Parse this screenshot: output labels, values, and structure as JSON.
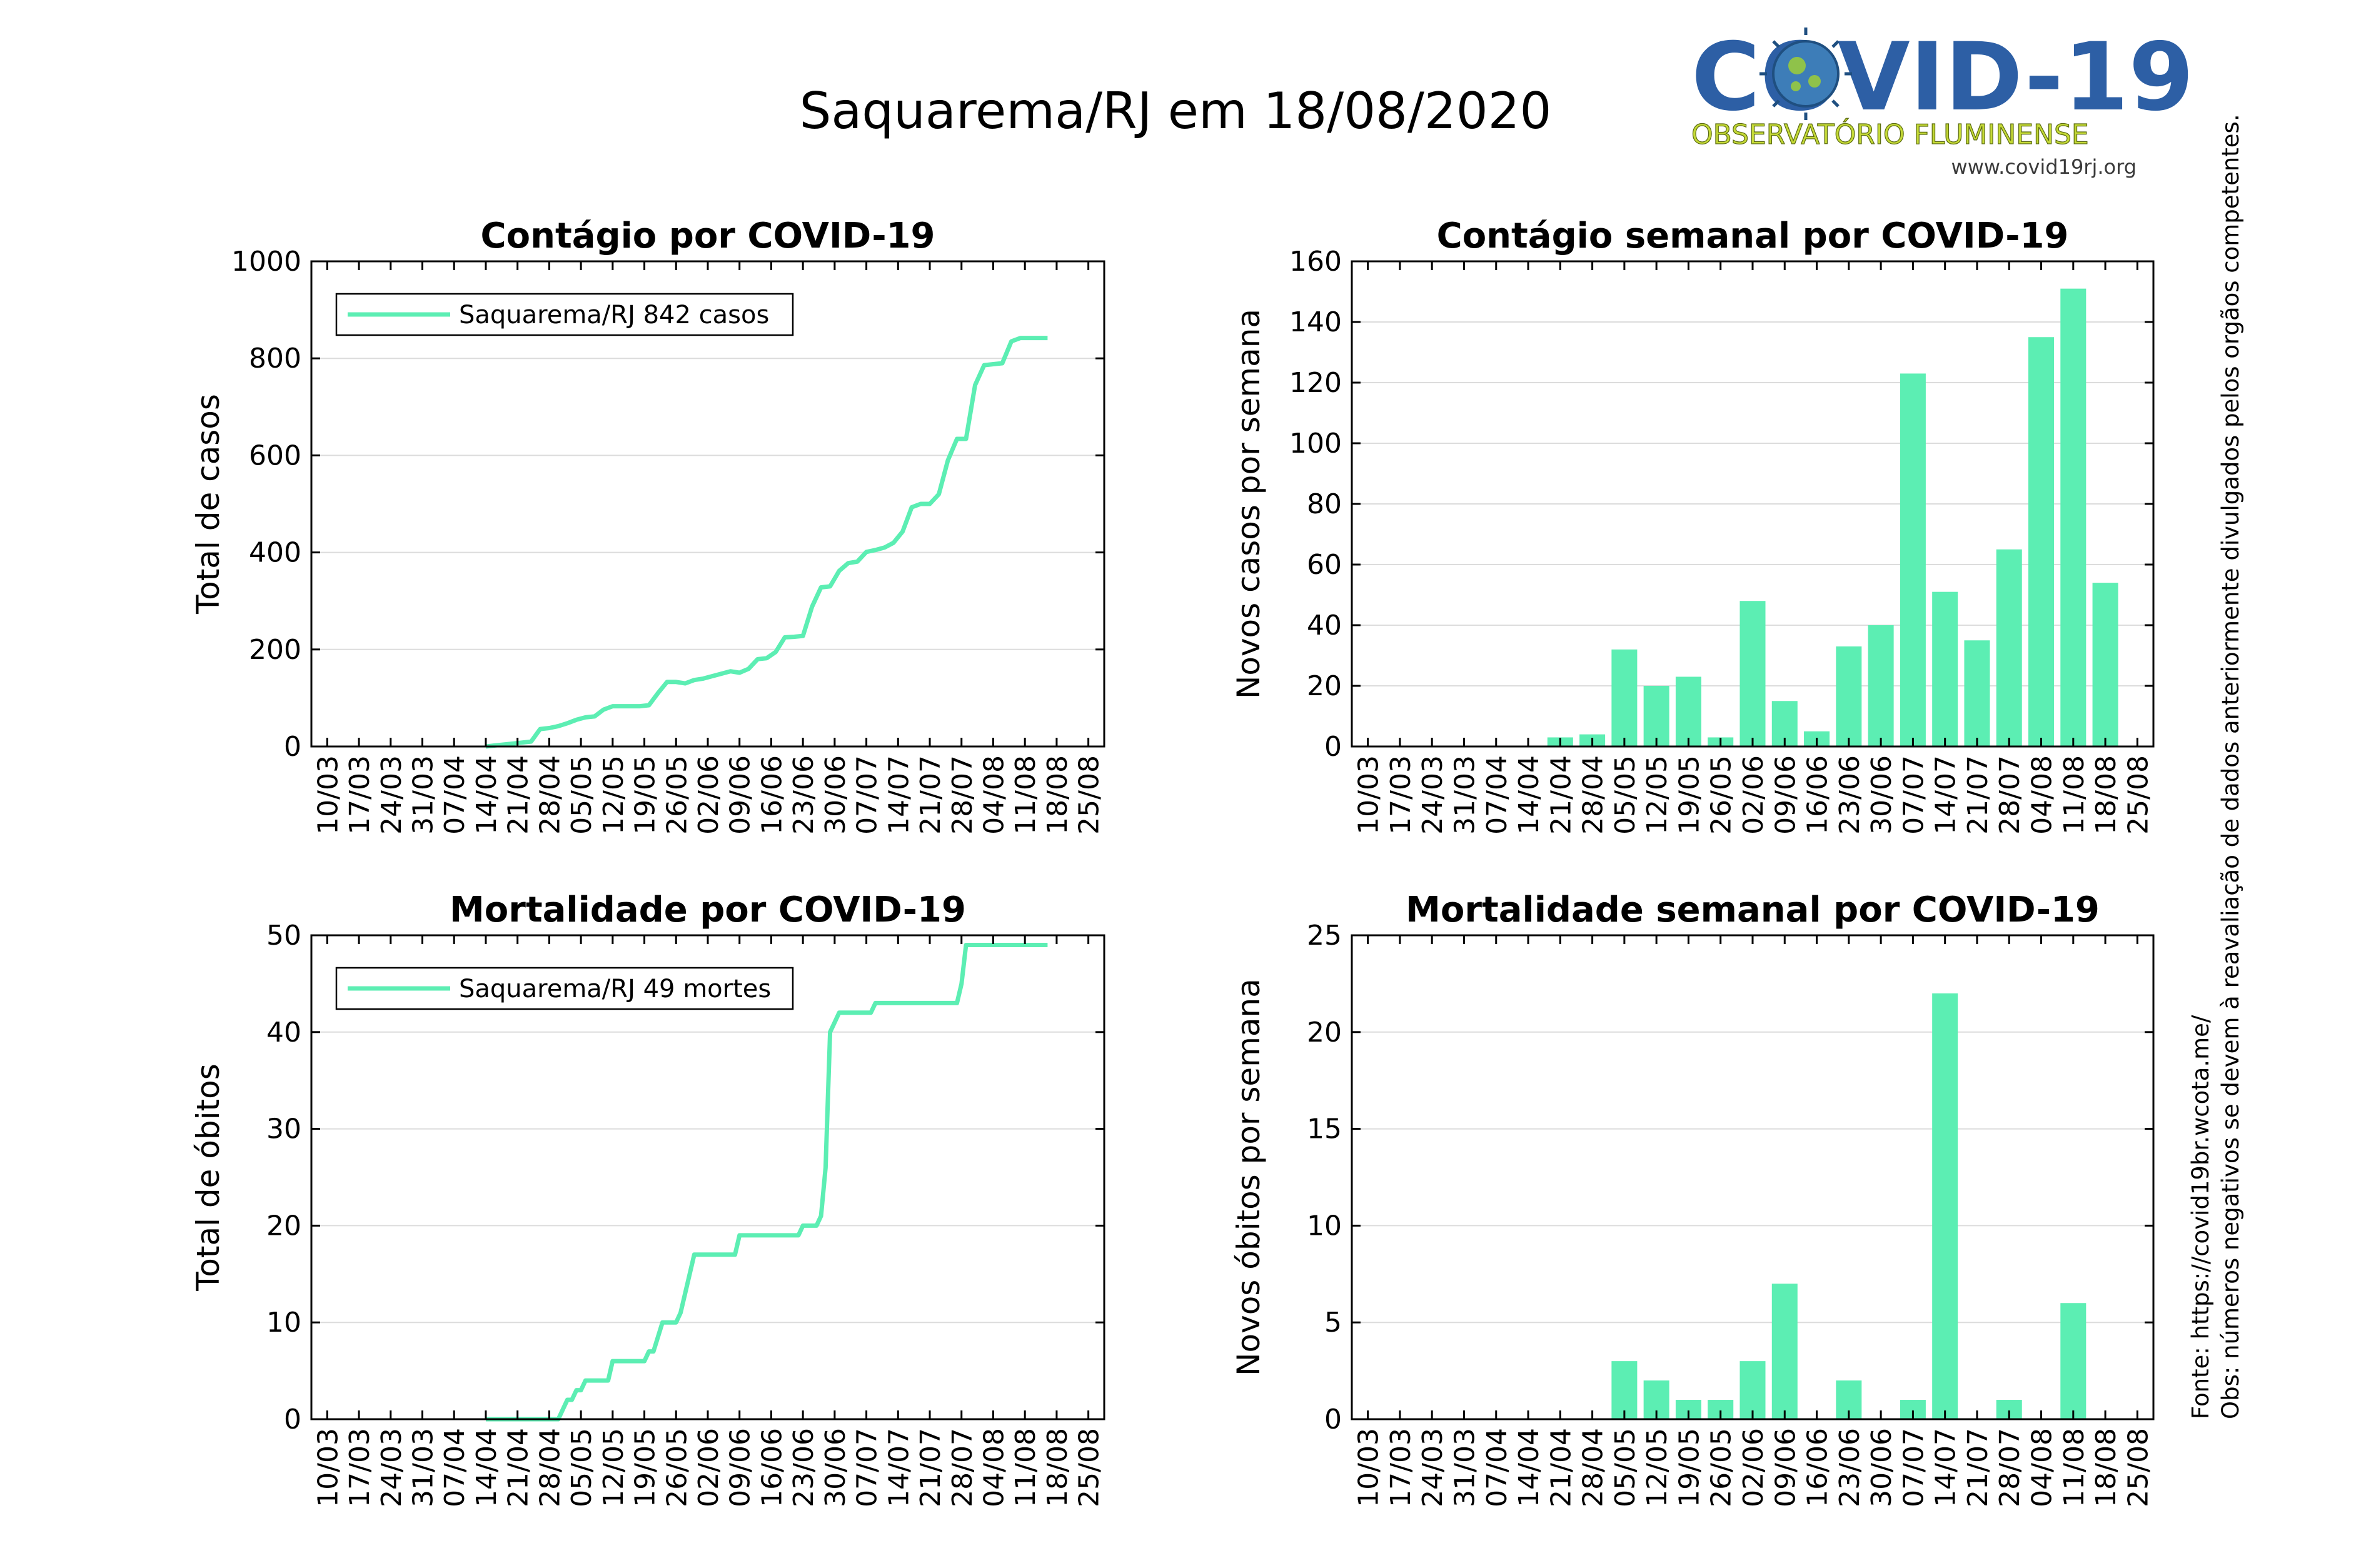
{
  "figure": {
    "suptitle": "Saquarema/RJ em 18/08/2020",
    "series_color": "#5ceeb3",
    "logo": {
      "title": "COVID-19",
      "subtitle": "OBSERVATÓRIO FLUMINENSE",
      "url": "www.covid19rj.org",
      "colors": {
        "title": "#2d5fa5",
        "subtitle": "#c4d936",
        "virus": "#3d7db8"
      }
    },
    "source_note": "Fonte: https://covid19br.wcota.me/",
    "obs_note": "Obs: números negativos se devem à reavaliação de dados anteriormente divulgados pelos orgãos competentes."
  },
  "chart_data": [
    {
      "type": "line",
      "title": "Contágio por COVID-19",
      "xlabel": "",
      "ylabel": "Total de casos",
      "x_ticks": [
        "10/03",
        "17/03",
        "24/03",
        "31/03",
        "07/04",
        "14/04",
        "21/04",
        "28/04",
        "05/05",
        "12/05",
        "19/05",
        "26/05",
        "02/06",
        "09/06",
        "16/06",
        "23/06",
        "30/06",
        "07/07",
        "14/07",
        "21/07",
        "28/07",
        "04/08",
        "11/08",
        "18/08",
        "25/08"
      ],
      "ylim": [
        0,
        1000
      ],
      "yticks": [
        0,
        200,
        400,
        600,
        800,
        1000
      ],
      "grid": "horizontal",
      "legend": {
        "position": "top-left",
        "label": "Saquarema/RJ  842 casos"
      },
      "series": [
        {
          "name": "Saquarema/RJ  842 casos",
          "x_day": [
            35,
            37,
            39,
            41,
            45,
            47,
            49,
            51,
            53,
            55,
            57,
            59,
            61,
            63,
            65,
            67,
            69,
            71,
            73,
            75,
            77,
            79,
            81,
            83,
            85,
            87,
            89,
            91,
            93,
            95,
            97,
            99,
            101,
            103,
            105,
            107,
            109,
            111,
            113,
            115,
            117,
            119,
            121,
            123,
            125,
            127,
            129,
            131,
            133,
            135,
            137,
            139,
            141,
            143,
            145,
            147,
            149,
            151,
            153,
            155,
            157,
            159
          ],
          "y": [
            0,
            2,
            4,
            6,
            10,
            36,
            38,
            42,
            48,
            55,
            60,
            62,
            76,
            83,
            83,
            83,
            83,
            85,
            110,
            133,
            133,
            130,
            137,
            140,
            145,
            150,
            155,
            152,
            160,
            180,
            182,
            195,
            225,
            226,
            228,
            288,
            328,
            330,
            362,
            378,
            381,
            401,
            405,
            410,
            420,
            443,
            493,
            500,
            500,
            520,
            590,
            634,
            634,
            745,
            786,
            788,
            790,
            835,
            842,
            842,
            842,
            842
          ]
        }
      ]
    },
    {
      "type": "bar",
      "title": "Contágio semanal por COVID-19",
      "xlabel": "",
      "ylabel": "Novos casos por semana",
      "categories": [
        "10/03",
        "17/03",
        "24/03",
        "31/03",
        "07/04",
        "14/04",
        "21/04",
        "28/04",
        "05/05",
        "12/05",
        "19/05",
        "26/05",
        "02/06",
        "09/06",
        "16/06",
        "23/06",
        "30/06",
        "07/07",
        "14/07",
        "21/07",
        "28/07",
        "04/08",
        "11/08",
        "18/08",
        "25/08"
      ],
      "values": [
        0,
        0,
        0,
        0,
        0,
        0,
        3,
        4,
        32,
        20,
        23,
        3,
        48,
        15,
        5,
        33,
        40,
        123,
        51,
        35,
        65,
        135,
        151,
        54,
        null
      ],
      "ylim": [
        0,
        160
      ],
      "yticks": [
        0,
        20,
        40,
        60,
        80,
        100,
        120,
        140,
        160
      ],
      "grid": "horizontal"
    },
    {
      "type": "line",
      "title": "Mortalidade por COVID-19",
      "xlabel": "",
      "ylabel": "Total de óbitos",
      "x_ticks": [
        "10/03",
        "17/03",
        "24/03",
        "31/03",
        "07/04",
        "14/04",
        "21/04",
        "28/04",
        "05/05",
        "12/05",
        "19/05",
        "26/05",
        "02/06",
        "09/06",
        "16/06",
        "23/06",
        "30/06",
        "07/07",
        "14/07",
        "21/07",
        "28/07",
        "04/08",
        "11/08",
        "18/08",
        "25/08"
      ],
      "ylim": [
        0,
        50
      ],
      "yticks": [
        0,
        10,
        20,
        30,
        40,
        50
      ],
      "grid": "horizontal",
      "legend": {
        "position": "top-left",
        "label": "Saquarema/RJ  49 mortes"
      },
      "series": [
        {
          "name": "Saquarema/RJ  49 mortes",
          "x_day": [
            35,
            44,
            51,
            52,
            53,
            54,
            55,
            56,
            57,
            58,
            62,
            63,
            70,
            71,
            72,
            74,
            77,
            78,
            81,
            82,
            90,
            91,
            96,
            97,
            104,
            105,
            108,
            109,
            110,
            111,
            112,
            113,
            114,
            120,
            121,
            130,
            131,
            139,
            140,
            141,
            156,
            159
          ],
          "y": [
            0,
            0,
            0,
            1,
            2,
            2,
            3,
            3,
            4,
            4,
            4,
            6,
            6,
            7,
            7,
            10,
            10,
            11,
            17,
            17,
            17,
            19,
            19,
            19,
            19,
            20,
            20,
            21,
            26,
            40,
            41,
            42,
            42,
            42,
            43,
            43,
            43,
            43,
            45,
            49,
            49,
            49
          ]
        }
      ]
    },
    {
      "type": "bar",
      "title": "Mortalidade semanal por COVID-19",
      "xlabel": "",
      "ylabel": "Novos óbitos por semana",
      "categories": [
        "10/03",
        "17/03",
        "24/03",
        "31/03",
        "07/04",
        "14/04",
        "21/04",
        "28/04",
        "05/05",
        "12/05",
        "19/05",
        "26/05",
        "02/06",
        "09/06",
        "16/06",
        "23/06",
        "30/06",
        "07/07",
        "14/07",
        "21/07",
        "28/07",
        "04/08",
        "11/08",
        "18/08",
        "25/08"
      ],
      "values": [
        0,
        0,
        0,
        0,
        0,
        0,
        0,
        0,
        3,
        2,
        1,
        1,
        3,
        7,
        0,
        2,
        0,
        1,
        22,
        0,
        1,
        0,
        6,
        0,
        null
      ],
      "ylim": [
        0,
        25
      ],
      "yticks": [
        0,
        5,
        10,
        15,
        20,
        25
      ],
      "grid": "horizontal"
    }
  ]
}
